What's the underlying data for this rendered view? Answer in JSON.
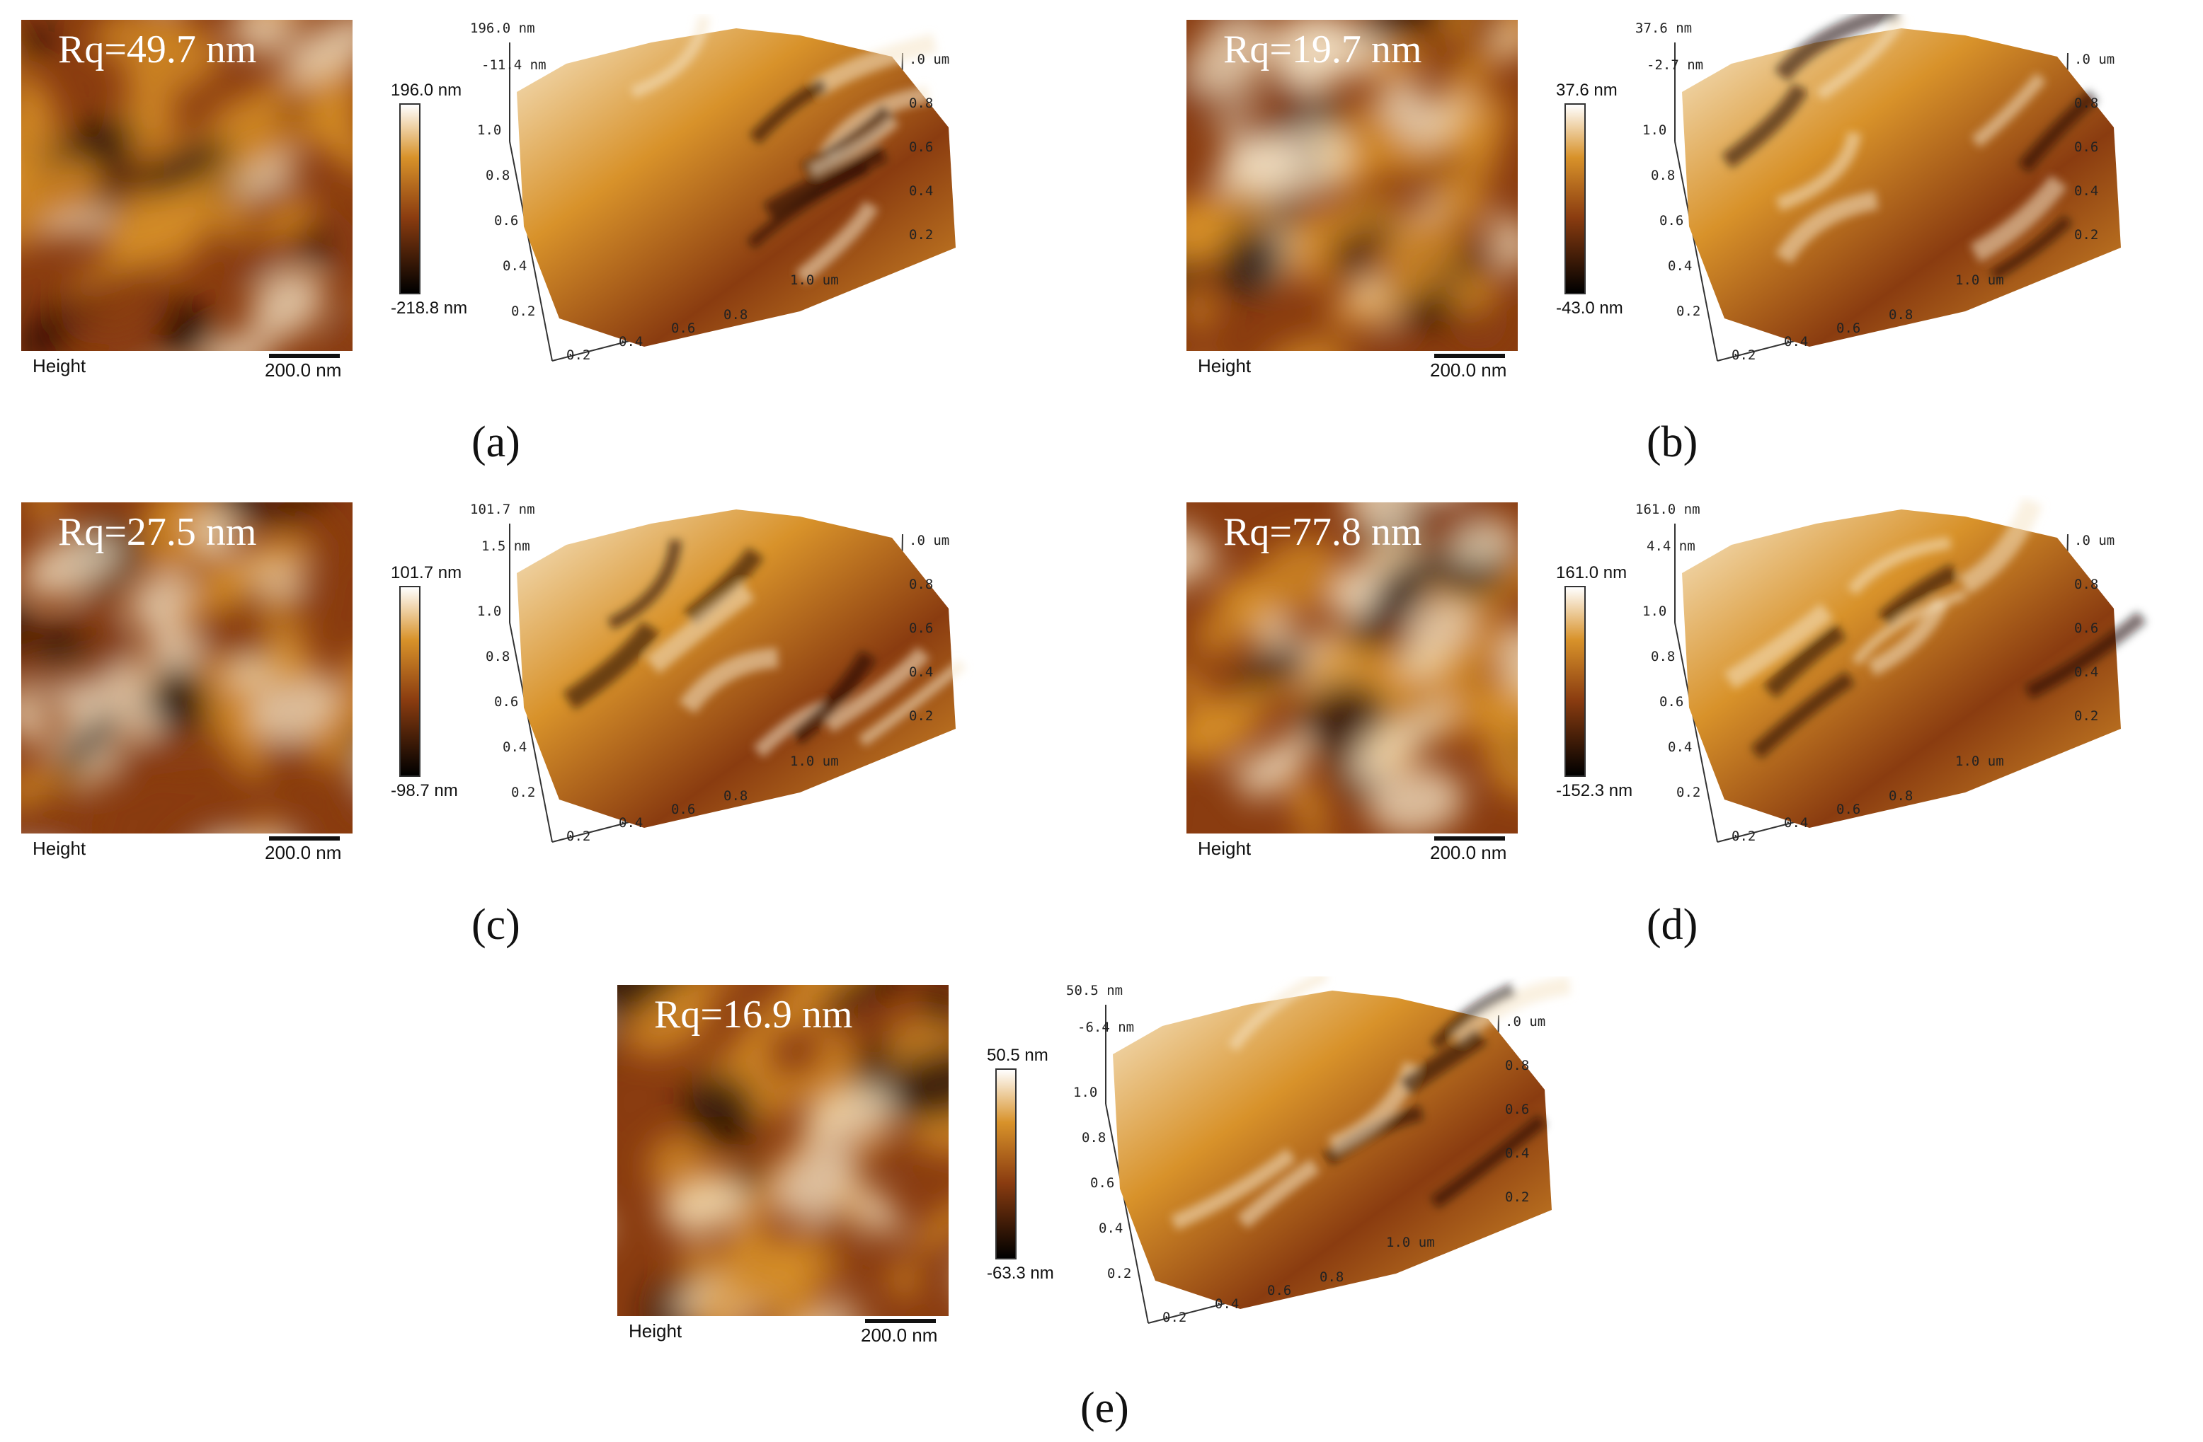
{
  "colors": {
    "afm_dark": "#1a0800",
    "afm_mid": "#8a3c10",
    "afm_bright": "#d8922a",
    "afm_highlight": "#f6e6c8"
  },
  "common": {
    "height_label": "Height",
    "scale_label": "200.0 nm",
    "axis_unit": "um",
    "y_axis_ticks": [
      "1.0",
      "0.8",
      "0.6",
      "0.4",
      "0.2"
    ],
    "x_axis_ticks": [
      "0.2",
      "0.4",
      "0.6",
      "0.8",
      "1.0"
    ],
    "side_axis_ticks": [
      ".0",
      "0.8",
      "0.6",
      "0.4",
      "0.2"
    ]
  },
  "panels": [
    {
      "id": "a",
      "label": "(a)",
      "rq": "Rq=49.7 nm",
      "cbar_max": "196.0 nm",
      "cbar_min": "-218.8 nm",
      "z_top": "196.0 nm",
      "z_mid": "-11.4 nm",
      "z_mid_unit": "nm"
    },
    {
      "id": "b",
      "label": "(b)",
      "rq": "Rq=19.7 nm",
      "cbar_max": "37.6 nm",
      "cbar_min": "-43.0 nm",
      "z_top": "37.6 nm",
      "z_mid": "-2.7 nm",
      "z_mid_unit": "nm"
    },
    {
      "id": "c",
      "label": "(c)",
      "rq": "Rq=27.5 nm",
      "cbar_max": "101.7 nm",
      "cbar_min": "-98.7 nm",
      "z_top": "101.7 nm",
      "z_mid": "1.5 nm",
      "z_mid_unit": "nm"
    },
    {
      "id": "d",
      "label": "(d)",
      "rq": "Rq=77.8 nm",
      "cbar_max": "161.0 nm",
      "cbar_min": "-152.3 nm",
      "z_top": "161.0 nm",
      "z_mid": "4.4 nm",
      "z_mid_unit": "nm"
    },
    {
      "id": "e",
      "label": "(e)",
      "rq": "Rq=16.9 nm",
      "cbar_max": "50.5 nm",
      "cbar_min": "-63.3 nm",
      "z_top": "50.5 nm",
      "z_mid": "-6.4 nm",
      "z_mid_unit": "nm"
    }
  ]
}
